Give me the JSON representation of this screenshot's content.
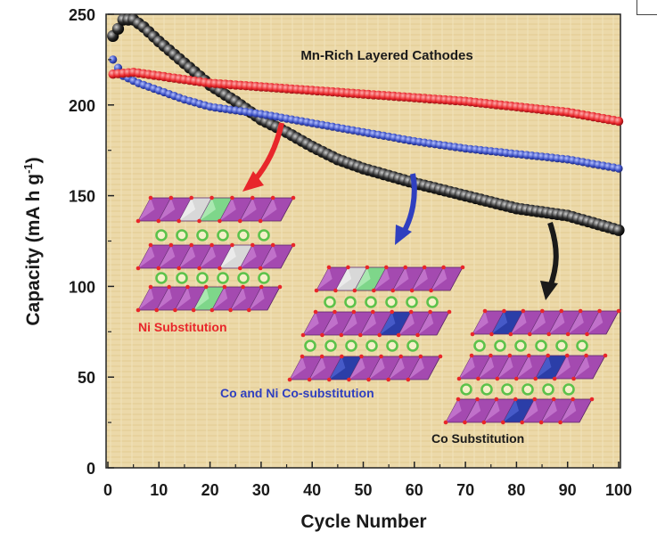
{
  "chart_data": {
    "type": "scatter",
    "title": "Mn-Rich Layered Cathodes",
    "xlabel": "Cycle Number",
    "ylabel": "Capacity (mA h g",
    "ylabel_sup": "-1",
    "ylabel_close": ")",
    "xlim": [
      0,
      100
    ],
    "ylim": [
      0,
      250
    ],
    "xticks": [
      0,
      10,
      20,
      30,
      40,
      50,
      60,
      70,
      80,
      90,
      100
    ],
    "yticks": [
      0,
      50,
      100,
      150,
      200,
      250
    ],
    "grid": false,
    "series": [
      {
        "name": "Ni Substitution",
        "color": "#e8262a",
        "label_color": "#e8262a",
        "points": [
          [
            1,
            217
          ],
          [
            5,
            218
          ],
          [
            10,
            216
          ],
          [
            15,
            214
          ],
          [
            20,
            212
          ],
          [
            30,
            210
          ],
          [
            40,
            208
          ],
          [
            50,
            206
          ],
          [
            60,
            204
          ],
          [
            70,
            202
          ],
          [
            80,
            199
          ],
          [
            90,
            196
          ],
          [
            100,
            191
          ]
        ]
      },
      {
        "name": "Co and Ni Co-substitution",
        "color": "#3b4fc4",
        "label_color": "#2f3fbf",
        "points": [
          [
            1,
            225
          ],
          [
            3,
            216
          ],
          [
            6,
            212
          ],
          [
            10,
            208
          ],
          [
            15,
            203
          ],
          [
            20,
            199
          ],
          [
            25,
            197
          ],
          [
            30,
            195
          ],
          [
            40,
            190
          ],
          [
            50,
            185
          ],
          [
            60,
            180
          ],
          [
            70,
            176
          ],
          [
            80,
            173
          ],
          [
            90,
            170
          ],
          [
            100,
            165
          ]
        ]
      },
      {
        "name": "Co Substitution",
        "color": "#1a1a1a",
        "label_color": "#1a1a1a",
        "points": [
          [
            1,
            238
          ],
          [
            2,
            242
          ],
          [
            3,
            247
          ],
          [
            5,
            247
          ],
          [
            7,
            243
          ],
          [
            10,
            235
          ],
          [
            15,
            223
          ],
          [
            20,
            211
          ],
          [
            25,
            202
          ],
          [
            30,
            192
          ],
          [
            35,
            185
          ],
          [
            40,
            177
          ],
          [
            45,
            170
          ],
          [
            50,
            165
          ],
          [
            60,
            157
          ],
          [
            70,
            150
          ],
          [
            80,
            143
          ],
          [
            90,
            139
          ],
          [
            100,
            131
          ]
        ]
      }
    ],
    "annotations": [
      "Ni Substitution",
      "Co and Ni Co-substitution",
      "Co Substitution"
    ]
  }
}
